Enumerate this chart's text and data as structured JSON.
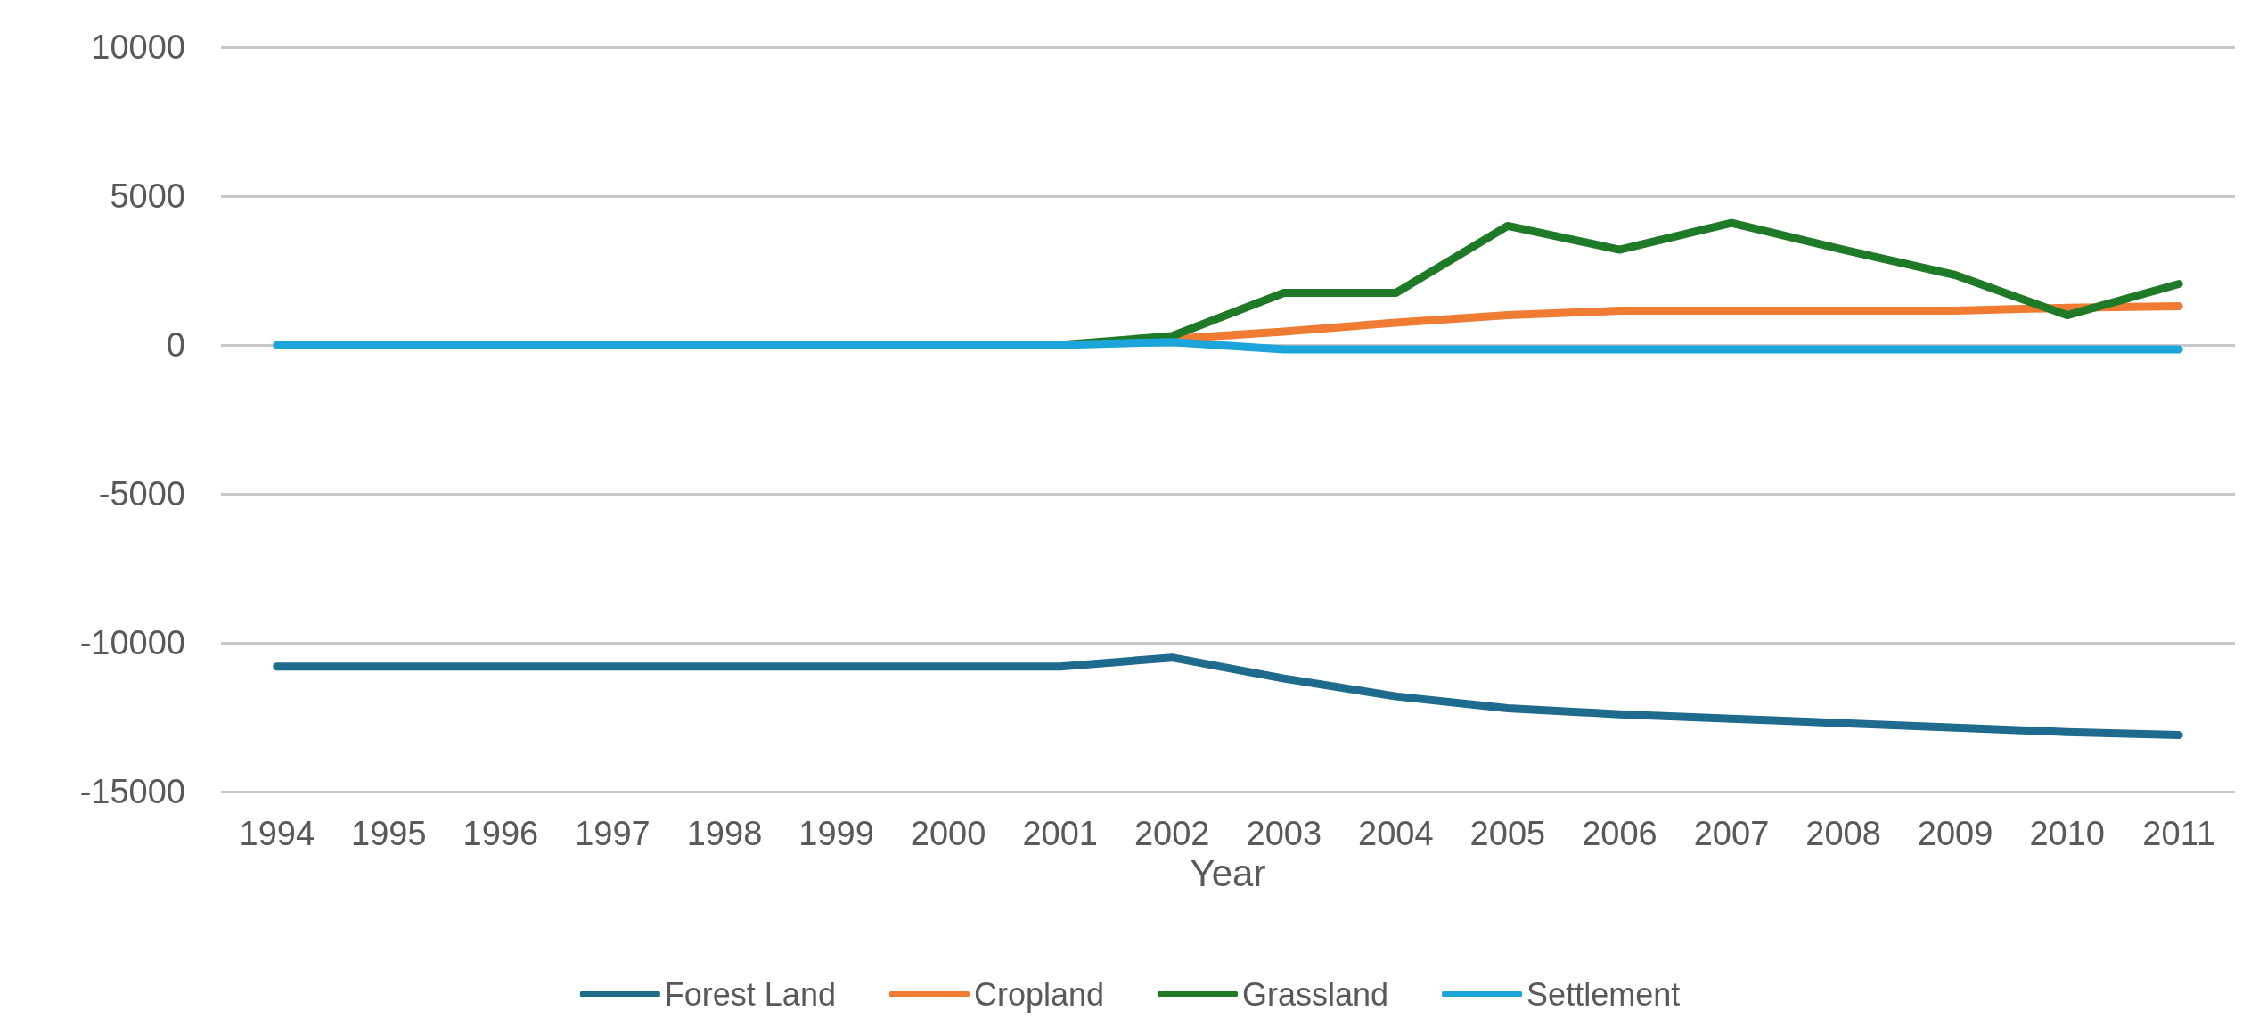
{
  "chart_data": {
    "type": "line",
    "xlabel": "Year",
    "categories": [
      "1994",
      "1995",
      "1996",
      "1997",
      "1998",
      "1999",
      "2000",
      "2001",
      "2002",
      "2003",
      "2004",
      "2005",
      "2006",
      "2007",
      "2008",
      "2009",
      "2010",
      "2011"
    ],
    "series": [
      {
        "name": "Forest Land",
        "color": "#1f6b8e",
        "values": [
          -10800,
          -10800,
          -10800,
          -10800,
          -10800,
          -10800,
          -10800,
          -10800,
          -10500,
          -11200,
          -11800,
          -12200,
          -12400,
          -12550,
          -12700,
          -12850,
          -13000,
          -13100
        ]
      },
      {
        "name": "Cropland",
        "color": "#f07c33",
        "values": [
          null,
          null,
          null,
          null,
          null,
          null,
          null,
          0,
          200,
          450,
          750,
          1000,
          1150,
          1150,
          1150,
          1150,
          1250,
          1300
        ]
      },
      {
        "name": "Grassland",
        "color": "#1e7a27",
        "values": [
          null,
          null,
          null,
          null,
          null,
          null,
          null,
          0,
          300,
          1750,
          1750,
          4000,
          3200,
          4100,
          3200,
          2350,
          1000,
          2050
        ]
      },
      {
        "name": "Settlement",
        "color": "#1ca5db",
        "values": [
          0,
          0,
          0,
          0,
          0,
          0,
          0,
          0,
          100,
          -150,
          -150,
          -150,
          -150,
          -150,
          -150,
          -150,
          -150,
          -150
        ]
      }
    ],
    "ylim": [
      -15000,
      10000
    ],
    "yticks": [
      -15000,
      -10000,
      -5000,
      0,
      5000,
      10000
    ],
    "grid": "y",
    "legend": "bottom",
    "marker": "none",
    "line_style": "solid"
  }
}
